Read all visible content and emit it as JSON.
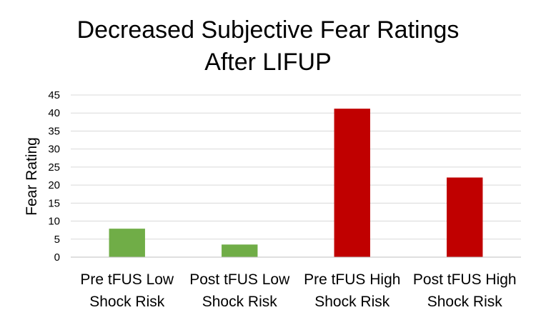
{
  "chart_data": {
    "type": "bar",
    "title_lines": [
      "Decreased Subjective Fear Ratings",
      "After LIFUP"
    ],
    "xlabel": "",
    "ylabel": "Fear Rating",
    "ylim": [
      0,
      45
    ],
    "y_ticks": [
      0,
      5,
      10,
      15,
      20,
      25,
      30,
      35,
      40,
      45
    ],
    "grid": true,
    "legend": "none",
    "categories": [
      [
        "Pre tFUS Low",
        "Shock Risk"
      ],
      [
        "Post tFUS Low",
        "Shock Risk"
      ],
      [
        "Pre tFUS High",
        "Shock Risk"
      ],
      [
        "Post tFUS High",
        "Shock Risk"
      ]
    ],
    "values": [
      7.9,
      3.5,
      41.2,
      22.1
    ],
    "colors": [
      "#70ad47",
      "#70ad47",
      "#c00000",
      "#c00000"
    ],
    "gridline_color": "#d9d9d9",
    "axis_color": "#bfbfbf"
  }
}
